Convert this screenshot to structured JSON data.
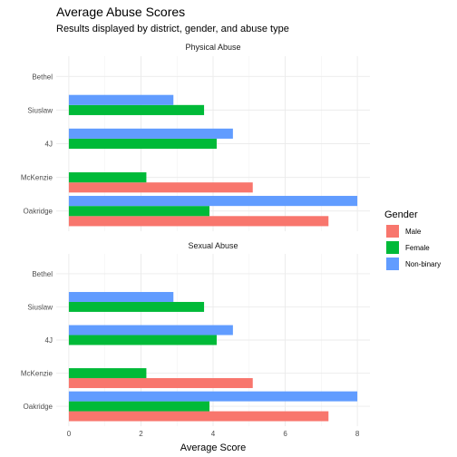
{
  "chart_data": {
    "type": "bar",
    "title": "Average Abuse Scores",
    "subtitle": "Results displayed by district, gender, and abuse type",
    "xlabel": "Average Score",
    "ylabel": "",
    "xlim": [
      -0.35,
      8.35
    ],
    "xticks": [
      0,
      2,
      4,
      6,
      8
    ],
    "grid": true,
    "orientation": "horizontal",
    "categories": [
      "Bethel",
      "Siuslaw",
      "4J",
      "McKenzie",
      "Oakridge"
    ],
    "legend": {
      "title": "Gender",
      "placement": "right",
      "entries": [
        {
          "label": "Male",
          "color": "#F8766D"
        },
        {
          "label": "Female",
          "color": "#00BA38"
        },
        {
          "label": "Non-binary",
          "color": "#619CFF"
        }
      ]
    },
    "panels": [
      {
        "title": "Physical Abuse",
        "series": [
          {
            "name": "Male",
            "color": "#F8766D",
            "values": [
              null,
              null,
              null,
              5.1,
              7.2
            ]
          },
          {
            "name": "Female",
            "color": "#00BA38",
            "values": [
              null,
              3.75,
              4.1,
              2.15,
              3.9
            ]
          },
          {
            "name": "Non-binary",
            "color": "#619CFF",
            "values": [
              null,
              2.9,
              4.55,
              null,
              8.0
            ]
          }
        ]
      },
      {
        "title": "Sexual Abuse",
        "series": [
          {
            "name": "Male",
            "color": "#F8766D",
            "values": [
              null,
              null,
              null,
              5.1,
              7.2
            ]
          },
          {
            "name": "Female",
            "color": "#00BA38",
            "values": [
              null,
              3.75,
              4.1,
              2.15,
              3.9
            ]
          },
          {
            "name": "Non-binary",
            "color": "#619CFF",
            "values": [
              null,
              2.9,
              4.55,
              null,
              8.0
            ]
          }
        ]
      }
    ]
  }
}
